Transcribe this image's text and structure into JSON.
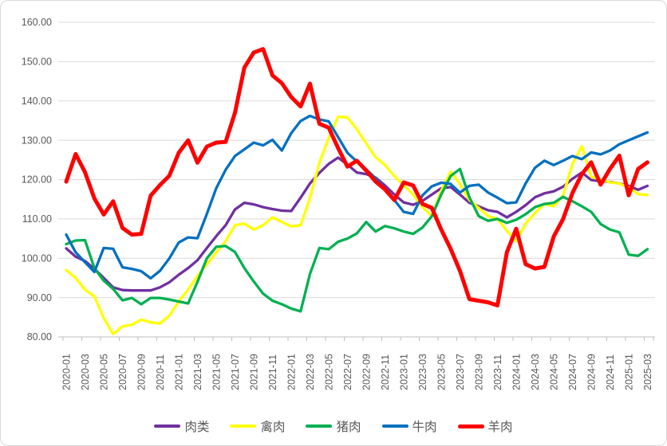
{
  "chart_data": {
    "type": "line",
    "title": "",
    "xlabel": "",
    "ylabel": "",
    "ylim": [
      80,
      160
    ],
    "y_tick_step": 10,
    "y_tick_labels": [
      "160.00",
      "150.00",
      "140.00",
      "130.00",
      "120.00",
      "110.00",
      "100.00",
      "90.00",
      "80.00"
    ],
    "x_tick_labels_shown": [
      "2020-01",
      "2020-03",
      "2020-05",
      "2020-07",
      "2020-09",
      "2020-11",
      "2021-01",
      "2021-03",
      "2021-05",
      "2021-07",
      "2021-09",
      "2021-11",
      "2022-01",
      "2022-03",
      "2022-05",
      "2022-07",
      "2022-09",
      "2022-11",
      "2023-01",
      "2023-03",
      "2023-05",
      "2023-07",
      "2023-09",
      "2023-11",
      "2024-01",
      "2024-03",
      "2024-05",
      "2024-07",
      "2024-09",
      "2024-11",
      "2025-01",
      "2025-03"
    ],
    "x": [
      "2020-01",
      "2020-02",
      "2020-03",
      "2020-04",
      "2020-05",
      "2020-06",
      "2020-07",
      "2020-08",
      "2020-09",
      "2020-10",
      "2020-11",
      "2020-12",
      "2021-01",
      "2021-02",
      "2021-03",
      "2021-04",
      "2021-05",
      "2021-06",
      "2021-07",
      "2021-08",
      "2021-09",
      "2021-10",
      "2021-11",
      "2021-12",
      "2022-01",
      "2022-02",
      "2022-03",
      "2022-04",
      "2022-05",
      "2022-06",
      "2022-07",
      "2022-08",
      "2022-09",
      "2022-10",
      "2022-11",
      "2022-12",
      "2023-01",
      "2023-02",
      "2023-03",
      "2023-04",
      "2023-05",
      "2023-06",
      "2023-07",
      "2023-08",
      "2023-09",
      "2023-10",
      "2023-11",
      "2023-12",
      "2024-01",
      "2024-02",
      "2024-03",
      "2024-04",
      "2024-05",
      "2024-06",
      "2024-07",
      "2024-08",
      "2024-09",
      "2024-10",
      "2024-11",
      "2024-12",
      "2025-01",
      "2025-02",
      "2025-03"
    ],
    "grid": true,
    "gridline_color": "#d9d9d9",
    "axis_line_color": "#bfbfbf",
    "axis_text_color": "#595959",
    "legend_position": "bottom",
    "series": [
      {
        "id": "meat",
        "name": "肉类",
        "color": "#7030a0",
        "stroke_width": 3.3,
        "values": [
          102.5,
          100.4,
          99.3,
          97.3,
          95.0,
          92.6,
          91.9,
          91.8,
          91.8,
          91.8,
          92.6,
          93.9,
          95.8,
          97.5,
          99.5,
          102.6,
          105.6,
          108.4,
          112.4,
          114.1,
          113.7,
          113.0,
          112.5,
          112.1,
          112.0,
          115.4,
          119.0,
          121.7,
          124.0,
          125.6,
          123.8,
          121.8,
          121.4,
          120.5,
          118.5,
          116.2,
          114.2,
          113.6,
          114.6,
          116.2,
          117.8,
          118.1,
          116.2,
          114.1,
          113.2,
          112.2,
          111.8,
          110.4,
          111.8,
          113.5,
          115.5,
          116.5,
          117.0,
          118.2,
          120.2,
          121.8,
          119.9,
          119.6,
          119.4,
          119.0,
          118.4,
          117.4,
          118.4
        ]
      },
      {
        "id": "poultry",
        "name": "禽肉",
        "color": "#ffff00",
        "stroke_width": 3.3,
        "values": [
          97.0,
          95.0,
          92.0,
          90.3,
          84.8,
          80.7,
          82.7,
          83.1,
          84.4,
          83.7,
          83.4,
          85.4,
          89.0,
          92.0,
          95.5,
          98.5,
          101.4,
          104.3,
          108.4,
          108.8,
          107.3,
          108.4,
          110.4,
          109.2,
          108.1,
          108.4,
          115.3,
          124.3,
          130.5,
          136.0,
          135.8,
          132.8,
          129.2,
          125.7,
          123.7,
          120.9,
          118.6,
          116.2,
          113.0,
          110.7,
          117.2,
          122.0,
          118.9,
          114.8,
          112.8,
          110.7,
          110.0,
          107.0,
          104.3,
          108.8,
          111.5,
          113.8,
          113.2,
          116.0,
          124.0,
          128.5,
          120.7,
          120.0,
          119.3,
          119.0,
          118.0,
          116.3,
          116.1
        ]
      },
      {
        "id": "pork",
        "name": "猪肉",
        "color": "#00b050",
        "stroke_width": 3.3,
        "values": [
          103.6,
          104.5,
          104.6,
          97.5,
          94.3,
          92.2,
          89.3,
          89.9,
          88.3,
          89.9,
          89.9,
          89.5,
          89.0,
          88.5,
          94.0,
          100.0,
          102.9,
          103.1,
          101.6,
          97.5,
          94.1,
          91.0,
          89.2,
          88.3,
          87.2,
          86.5,
          96.0,
          102.6,
          102.3,
          104.2,
          105.0,
          106.3,
          109.2,
          106.8,
          108.2,
          107.6,
          106.8,
          106.2,
          107.8,
          110.7,
          116.2,
          120.9,
          122.7,
          115.5,
          110.7,
          109.5,
          110.0,
          109.0,
          109.8,
          111.2,
          113.0,
          113.8,
          114.1,
          115.6,
          114.5,
          113.2,
          111.8,
          108.7,
          107.3,
          106.6,
          100.9,
          100.6,
          102.3
        ]
      },
      {
        "id": "beef",
        "name": "牛肉",
        "color": "#0070c0",
        "stroke_width": 3.3,
        "values": [
          106.0,
          101.5,
          99.0,
          96.5,
          102.6,
          102.4,
          97.7,
          97.3,
          96.7,
          94.9,
          96.8,
          100.0,
          104.0,
          105.3,
          105.1,
          111.3,
          117.8,
          122.5,
          126.0,
          127.7,
          129.4,
          128.7,
          130.1,
          127.4,
          131.8,
          134.9,
          136.2,
          135.3,
          134.8,
          130.8,
          126.8,
          124.6,
          122.6,
          120.3,
          117.5,
          114.8,
          111.8,
          111.3,
          116.0,
          118.3,
          119.2,
          118.9,
          116.7,
          118.4,
          118.7,
          116.7,
          115.4,
          114.0,
          114.2,
          119.0,
          123.0,
          124.8,
          123.7,
          124.8,
          126.0,
          125.2,
          126.9,
          126.4,
          127.4,
          129.0,
          130.0,
          131.0,
          132.0
        ]
      },
      {
        "id": "mutton",
        "name": "羊肉",
        "color": "#ff0000",
        "stroke_width": 5,
        "values": [
          119.5,
          126.5,
          121.9,
          115.2,
          111.1,
          114.5,
          107.7,
          106.0,
          106.2,
          115.9,
          118.6,
          121.0,
          126.8,
          130.0,
          124.3,
          128.4,
          129.4,
          129.6,
          137.0,
          148.5,
          152.3,
          153.2,
          146.5,
          144.5,
          141.0,
          138.6,
          144.4,
          134.2,
          133.2,
          128.0,
          123.3,
          124.8,
          122.3,
          119.5,
          117.5,
          114.8,
          119.3,
          118.5,
          113.8,
          112.8,
          107.3,
          102.4,
          96.8,
          89.6,
          89.2,
          88.8,
          88.0,
          101.5,
          107.5,
          98.5,
          97.4,
          97.8,
          105.5,
          110.0,
          116.6,
          121.4,
          124.4,
          118.7,
          122.7,
          126.1,
          116.0,
          122.7,
          124.4
        ]
      }
    ]
  }
}
